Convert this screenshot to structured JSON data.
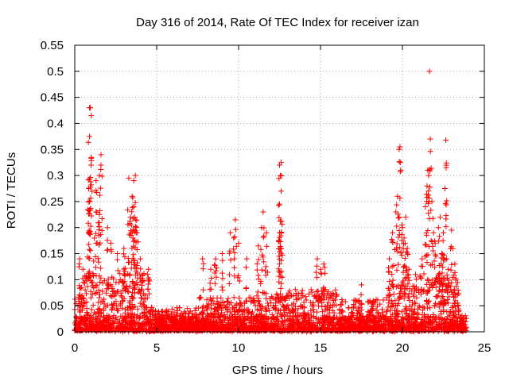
{
  "chart_data": {
    "type": "scatter",
    "title": "Day 316 of 2014, Rate Of TEC Index for receiver izan",
    "xlabel": "GPS time / hours",
    "ylabel": "ROTI / TECUs",
    "xlim": [
      0,
      25
    ],
    "ylim": [
      0,
      0.55
    ],
    "x_ticks": [
      0,
      5,
      10,
      15,
      20,
      25
    ],
    "y_ticks": [
      0,
      0.05,
      0.1,
      0.15,
      0.2,
      0.25,
      0.3,
      0.35,
      0.4,
      0.45,
      0.5,
      0.55
    ],
    "x_tick_labels": [
      "0",
      "5",
      "10",
      "15",
      "20",
      "25"
    ],
    "y_tick_labels": [
      "0",
      "0.05",
      "0.1",
      "0.15",
      "0.2",
      "0.25",
      "0.3",
      "0.35",
      "0.4",
      "0.45",
      "0.5",
      "0.55"
    ],
    "grid": true,
    "marker": "+",
    "color": "#ff0000",
    "envelope_note": "Dense baseline of ROTI 0-0.05 across 0-24 h; peak clusters listed below",
    "baseline": {
      "x_range": [
        0,
        23.9
      ],
      "typical_max": 0.05,
      "occasional_max": 0.09
    },
    "peaks": [
      {
        "x": 0.3,
        "y": 0.14
      },
      {
        "x": 0.5,
        "y": 0.12
      },
      {
        "x": 0.9,
        "y": 0.43
      },
      {
        "x": 0.95,
        "y": 0.43
      },
      {
        "x": 1.0,
        "y": 0.415
      },
      {
        "x": 0.9,
        "y": 0.375
      },
      {
        "x": 0.85,
        "y": 0.275
      },
      {
        "x": 0.9,
        "y": 0.25
      },
      {
        "x": 0.85,
        "y": 0.19
      },
      {
        "x": 1.3,
        "y": 0.29
      },
      {
        "x": 1.5,
        "y": 0.3
      },
      {
        "x": 1.6,
        "y": 0.32
      },
      {
        "x": 1.6,
        "y": 0.34
      },
      {
        "x": 1.3,
        "y": 0.23
      },
      {
        "x": 1.5,
        "y": 0.225
      },
      {
        "x": 1.2,
        "y": 0.18
      },
      {
        "x": 2.0,
        "y": 0.2
      },
      {
        "x": 2.2,
        "y": 0.17
      },
      {
        "x": 2.6,
        "y": 0.15
      },
      {
        "x": 3.0,
        "y": 0.16
      },
      {
        "x": 3.3,
        "y": 0.295
      },
      {
        "x": 3.6,
        "y": 0.29
      },
      {
        "x": 3.7,
        "y": 0.3
      },
      {
        "x": 3.5,
        "y": 0.26
      },
      {
        "x": 3.6,
        "y": 0.24
      },
      {
        "x": 3.4,
        "y": 0.22
      },
      {
        "x": 3.7,
        "y": 0.215
      },
      {
        "x": 3.8,
        "y": 0.19
      },
      {
        "x": 4.0,
        "y": 0.14
      },
      {
        "x": 4.5,
        "y": 0.12
      },
      {
        "x": 7.8,
        "y": 0.14
      },
      {
        "x": 8.3,
        "y": 0.12
      },
      {
        "x": 8.6,
        "y": 0.14
      },
      {
        "x": 9.0,
        "y": 0.15
      },
      {
        "x": 9.5,
        "y": 0.19
      },
      {
        "x": 9.7,
        "y": 0.18
      },
      {
        "x": 9.8,
        "y": 0.215
      },
      {
        "x": 10.0,
        "y": 0.17
      },
      {
        "x": 10.5,
        "y": 0.14
      },
      {
        "x": 11.2,
        "y": 0.165
      },
      {
        "x": 11.4,
        "y": 0.2
      },
      {
        "x": 11.5,
        "y": 0.23
      },
      {
        "x": 11.7,
        "y": 0.19
      },
      {
        "x": 12.5,
        "y": 0.32
      },
      {
        "x": 12.6,
        "y": 0.325
      },
      {
        "x": 12.55,
        "y": 0.3
      },
      {
        "x": 12.6,
        "y": 0.27
      },
      {
        "x": 12.5,
        "y": 0.245
      },
      {
        "x": 12.5,
        "y": 0.19
      },
      {
        "x": 12.6,
        "y": 0.16
      },
      {
        "x": 12.5,
        "y": 0.13
      },
      {
        "x": 14.8,
        "y": 0.14
      },
      {
        "x": 15.0,
        "y": 0.12
      },
      {
        "x": 15.2,
        "y": 0.13
      },
      {
        "x": 17.5,
        "y": 0.09
      },
      {
        "x": 19.2,
        "y": 0.14
      },
      {
        "x": 19.4,
        "y": 0.19
      },
      {
        "x": 19.6,
        "y": 0.23
      },
      {
        "x": 19.7,
        "y": 0.26
      },
      {
        "x": 19.8,
        "y": 0.35
      },
      {
        "x": 19.85,
        "y": 0.355
      },
      {
        "x": 19.9,
        "y": 0.31
      },
      {
        "x": 20.0,
        "y": 0.2
      },
      {
        "x": 20.1,
        "y": 0.18
      },
      {
        "x": 20.2,
        "y": 0.22
      },
      {
        "x": 20.3,
        "y": 0.16
      },
      {
        "x": 20.4,
        "y": 0.12
      },
      {
        "x": 20.8,
        "y": 0.11
      },
      {
        "x": 21.2,
        "y": 0.14
      },
      {
        "x": 21.4,
        "y": 0.24
      },
      {
        "x": 21.5,
        "y": 0.28
      },
      {
        "x": 21.55,
        "y": 0.31
      },
      {
        "x": 21.6,
        "y": 0.3
      },
      {
        "x": 21.65,
        "y": 0.5
      },
      {
        "x": 21.7,
        "y": 0.37
      },
      {
        "x": 21.8,
        "y": 0.25
      },
      {
        "x": 21.9,
        "y": 0.19
      },
      {
        "x": 22.0,
        "y": 0.17
      },
      {
        "x": 22.2,
        "y": 0.2
      },
      {
        "x": 22.3,
        "y": 0.22
      },
      {
        "x": 22.4,
        "y": 0.15
      },
      {
        "x": 22.5,
        "y": 0.19
      },
      {
        "x": 22.6,
        "y": 0.275
      },
      {
        "x": 22.65,
        "y": 0.368
      },
      {
        "x": 22.7,
        "y": 0.14
      },
      {
        "x": 22.8,
        "y": 0.12
      },
      {
        "x": 23.0,
        "y": 0.195
      },
      {
        "x": 23.2,
        "y": 0.13
      },
      {
        "x": 23.4,
        "y": 0.08
      }
    ]
  }
}
